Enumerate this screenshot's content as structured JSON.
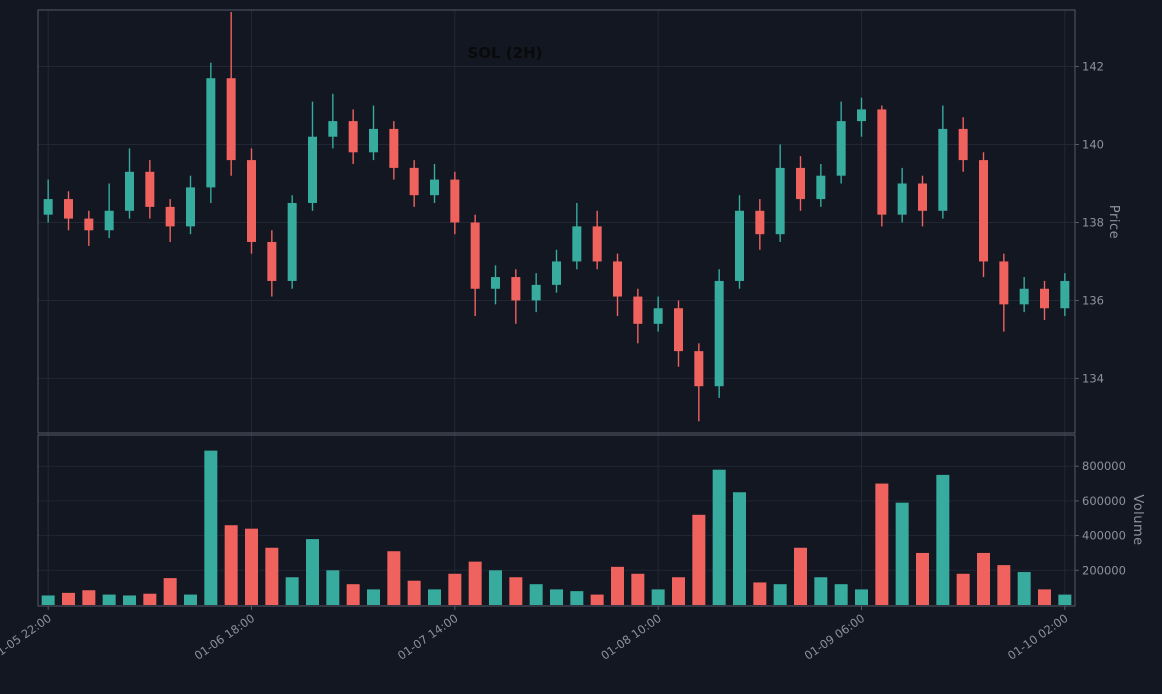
{
  "title": "SOL (2H)",
  "price_axis_label": "Price",
  "volume_axis_label": "Volume",
  "colors": {
    "background": "#131722",
    "up": "#36ab9e",
    "down": "#f0625d",
    "grid": "#212735",
    "spine": "#545a66",
    "tick_text": "#8b919d",
    "title_text": "#0a0a0a"
  },
  "chart_data": {
    "type": "candlestick+volume",
    "symbol": "SOL",
    "interval": "2H",
    "title": "SOL (2H)",
    "legend_position": "none",
    "grid": true,
    "x_tick_labels": [
      "01-05 22:00",
      "01-06 18:00",
      "01-07 14:00",
      "01-08 10:00",
      "01-09 06:00",
      "01-10 02:00"
    ],
    "x_tick_indices": [
      0,
      10,
      20,
      30,
      40,
      50
    ],
    "price_ticks": [
      134,
      136,
      138,
      140,
      142
    ],
    "price_ylim": [
      132.6,
      143.45
    ],
    "volume_ticks": [
      200000,
      400000,
      600000,
      800000
    ],
    "volume_ylim": [
      0,
      980000
    ],
    "candles_format": [
      "open",
      "high",
      "low",
      "close",
      "volume"
    ],
    "candles": [
      [
        138.2,
        139.1,
        138.0,
        138.6,
        55000
      ],
      [
        138.6,
        138.8,
        137.8,
        138.1,
        70000
      ],
      [
        138.1,
        138.3,
        137.4,
        137.8,
        85000
      ],
      [
        137.8,
        139.0,
        137.6,
        138.3,
        60000
      ],
      [
        138.3,
        139.9,
        138.1,
        139.3,
        55000
      ],
      [
        139.3,
        139.6,
        138.1,
        138.4,
        65000
      ],
      [
        138.4,
        138.6,
        137.5,
        137.9,
        155000
      ],
      [
        137.9,
        139.2,
        137.7,
        138.9,
        60000
      ],
      [
        138.9,
        142.1,
        138.5,
        141.7,
        890000
      ],
      [
        141.7,
        143.4,
        139.2,
        139.6,
        460000
      ],
      [
        139.6,
        139.9,
        137.2,
        137.5,
        440000
      ],
      [
        137.5,
        137.8,
        136.1,
        136.5,
        330000
      ],
      [
        136.5,
        138.7,
        136.3,
        138.5,
        160000
      ],
      [
        138.5,
        141.1,
        138.3,
        140.2,
        380000
      ],
      [
        140.2,
        141.3,
        139.9,
        140.6,
        200000
      ],
      [
        140.6,
        140.9,
        139.5,
        139.8,
        120000
      ],
      [
        139.8,
        141.0,
        139.6,
        140.4,
        90000
      ],
      [
        140.4,
        140.6,
        139.1,
        139.4,
        310000
      ],
      [
        139.4,
        139.6,
        138.4,
        138.7,
        140000
      ],
      [
        138.7,
        139.5,
        138.5,
        139.1,
        90000
      ],
      [
        139.1,
        139.3,
        137.7,
        138.0,
        180000
      ],
      [
        138.0,
        138.2,
        135.6,
        136.3,
        250000
      ],
      [
        136.3,
        136.9,
        135.9,
        136.6,
        200000
      ],
      [
        136.6,
        136.8,
        135.4,
        136.0,
        160000
      ],
      [
        136.0,
        136.7,
        135.7,
        136.4,
        120000
      ],
      [
        136.4,
        137.3,
        136.2,
        137.0,
        90000
      ],
      [
        137.0,
        138.5,
        136.8,
        137.9,
        80000
      ],
      [
        137.9,
        138.3,
        136.8,
        137.0,
        60000
      ],
      [
        137.0,
        137.2,
        135.6,
        136.1,
        220000
      ],
      [
        136.1,
        136.3,
        134.9,
        135.4,
        180000
      ],
      [
        135.4,
        136.1,
        135.2,
        135.8,
        90000
      ],
      [
        135.8,
        136.0,
        134.3,
        134.7,
        160000
      ],
      [
        134.7,
        134.9,
        132.9,
        133.8,
        520000
      ],
      [
        133.8,
        136.8,
        133.5,
        136.5,
        780000
      ],
      [
        136.5,
        138.7,
        136.3,
        138.3,
        650000
      ],
      [
        138.3,
        138.6,
        137.3,
        137.7,
        130000
      ],
      [
        137.7,
        140.0,
        137.5,
        139.4,
        120000
      ],
      [
        139.4,
        139.7,
        138.3,
        138.6,
        330000
      ],
      [
        138.6,
        139.5,
        138.4,
        139.2,
        160000
      ],
      [
        139.2,
        141.1,
        139.0,
        140.6,
        120000
      ],
      [
        140.6,
        141.2,
        140.2,
        140.9,
        90000
      ],
      [
        140.9,
        141.0,
        137.9,
        138.2,
        700000
      ],
      [
        138.2,
        139.4,
        138.0,
        139.0,
        590000
      ],
      [
        139.0,
        139.2,
        137.9,
        138.3,
        300000
      ],
      [
        138.3,
        141.0,
        138.1,
        140.4,
        750000
      ],
      [
        140.4,
        140.7,
        139.3,
        139.6,
        180000
      ],
      [
        139.6,
        139.8,
        136.6,
        137.0,
        300000
      ],
      [
        137.0,
        137.2,
        135.2,
        135.9,
        230000
      ],
      [
        135.9,
        136.6,
        135.7,
        136.3,
        190000
      ],
      [
        136.3,
        136.5,
        135.5,
        135.8,
        90000
      ],
      [
        135.8,
        136.7,
        135.6,
        136.5,
        60000
      ]
    ]
  }
}
